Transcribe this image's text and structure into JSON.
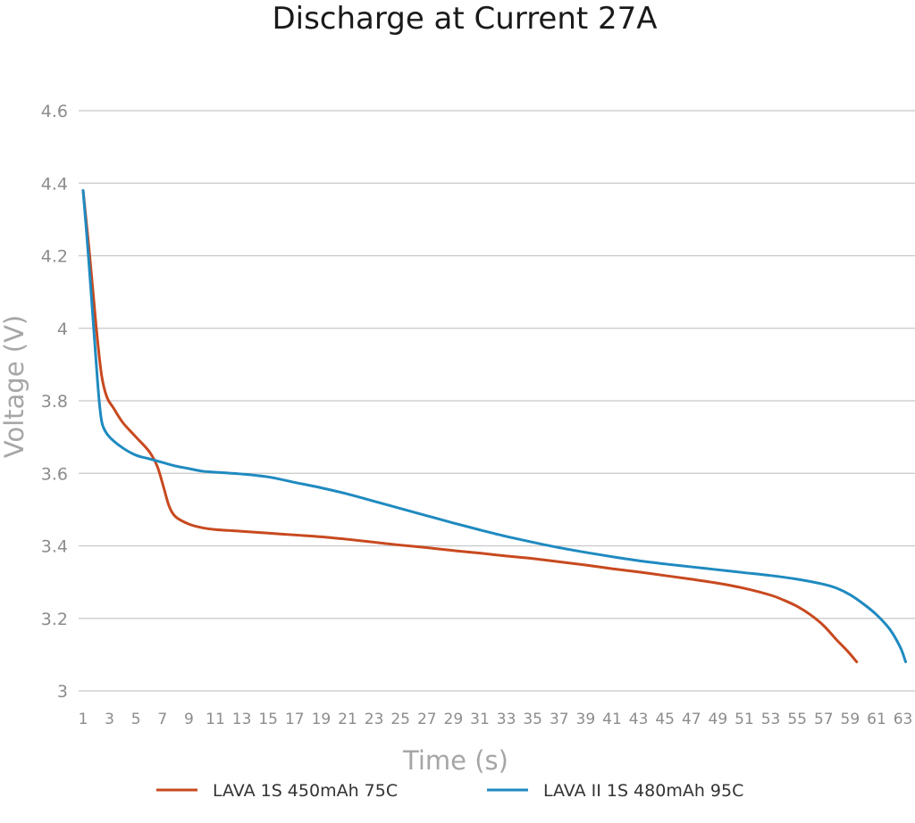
{
  "chart_data": {
    "type": "line",
    "title": "Discharge at Current 27A",
    "xlabel": "Time (s)",
    "ylabel": "Voltage (V)",
    "xlim": [
      1,
      63.3
    ],
    "ylim": [
      3,
      4.6
    ],
    "yticks": [
      3,
      3.2,
      3.4,
      3.6,
      3.8,
      4,
      4.2,
      4.4,
      4.6
    ],
    "ytick_labels": [
      "3",
      "3.2",
      "3.4",
      "3.6",
      "3.8",
      "4",
      "4.2",
      "4.4",
      "4.6"
    ],
    "xticks": [
      1,
      3,
      5,
      7,
      9,
      11,
      13,
      15,
      17,
      19,
      21,
      23,
      25,
      27,
      29,
      31,
      33,
      35,
      37,
      39,
      41,
      43,
      45,
      47,
      49,
      51,
      53,
      55,
      57,
      59,
      61,
      63
    ],
    "xtick_labels": [
      "1",
      "3",
      "5",
      "7",
      "9",
      "11",
      "13",
      "15",
      "17",
      "19",
      "21",
      "23",
      "25",
      "27",
      "29",
      "31",
      "33",
      "35",
      "37",
      "39",
      "41",
      "43",
      "45",
      "47",
      "49",
      "51",
      "53",
      "55",
      "57",
      "59",
      "61",
      "63"
    ],
    "grid": true,
    "legend_position": "bottom",
    "series": [
      {
        "name": "LAVA 1S 450mAh 75C",
        "color": "#c8491f",
        "x": [
          1,
          1.5,
          2,
          2.4,
          2.8,
          3.3,
          4,
          5,
          6,
          6.6,
          7.1,
          7.5,
          8,
          9,
          10,
          11,
          13,
          15,
          17,
          19,
          21,
          23,
          25,
          27,
          29,
          31,
          33,
          35,
          37,
          39,
          41,
          43,
          45,
          47,
          49,
          51,
          53,
          54,
          55,
          56,
          57,
          58,
          58.8,
          59.5
        ],
        "values": [
          4.38,
          4.2,
          4.0,
          3.87,
          3.81,
          3.78,
          3.74,
          3.7,
          3.66,
          3.62,
          3.56,
          3.51,
          3.48,
          3.46,
          3.45,
          3.445,
          3.44,
          3.435,
          3.43,
          3.425,
          3.418,
          3.41,
          3.402,
          3.395,
          3.387,
          3.38,
          3.372,
          3.365,
          3.356,
          3.347,
          3.337,
          3.328,
          3.318,
          3.308,
          3.297,
          3.283,
          3.264,
          3.25,
          3.233,
          3.21,
          3.18,
          3.14,
          3.11,
          3.08
        ]
      },
      {
        "name": "LAVA II 1S 480mAh 95C",
        "color": "#1f8ac0",
        "x": [
          1,
          1.4,
          1.8,
          2.1,
          2.3,
          2.5,
          3,
          4,
          5,
          6,
          7,
          8,
          9,
          10,
          11,
          13,
          15,
          17,
          19,
          21,
          23,
          25,
          27,
          29,
          31,
          33,
          35,
          37,
          39,
          41,
          43,
          45,
          47,
          49,
          51,
          53,
          55,
          57,
          58,
          59,
          60,
          61,
          62,
          62.8,
          63.2
        ],
        "values": [
          4.38,
          4.2,
          4.0,
          3.85,
          3.77,
          3.73,
          3.7,
          3.67,
          3.65,
          3.64,
          3.63,
          3.62,
          3.613,
          3.606,
          3.603,
          3.598,
          3.59,
          3.575,
          3.56,
          3.543,
          3.523,
          3.503,
          3.483,
          3.463,
          3.444,
          3.426,
          3.41,
          3.395,
          3.382,
          3.37,
          3.359,
          3.35,
          3.342,
          3.334,
          3.326,
          3.318,
          3.308,
          3.294,
          3.283,
          3.265,
          3.24,
          3.21,
          3.17,
          3.12,
          3.08
        ]
      }
    ]
  }
}
